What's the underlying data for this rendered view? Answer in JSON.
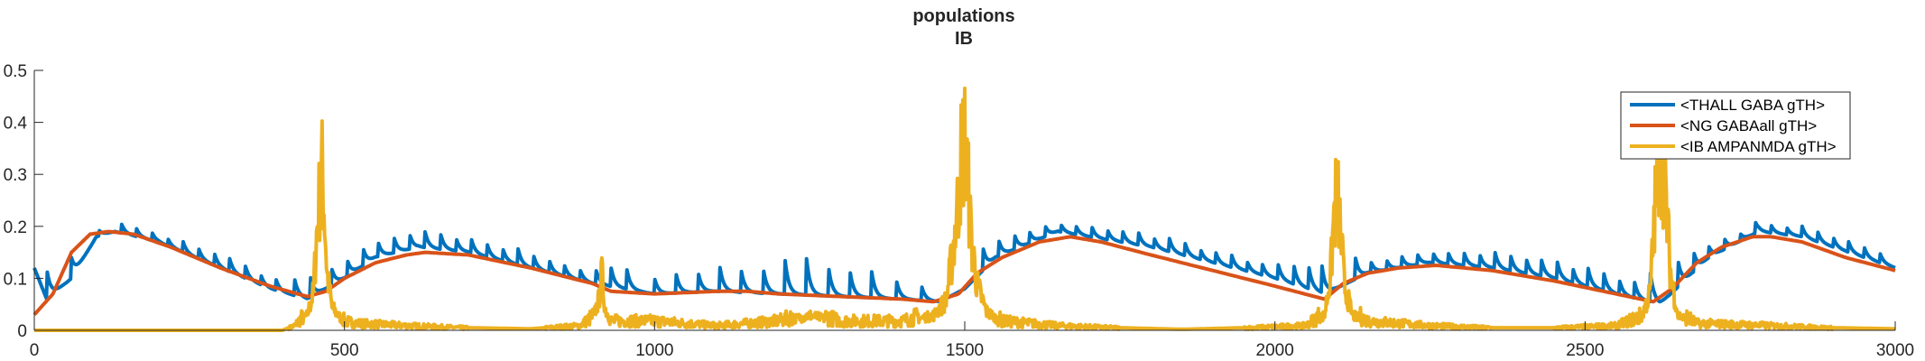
{
  "chart_data": {
    "type": "line",
    "title": "populations",
    "subtitle": "IB",
    "xlabel": "",
    "ylabel": "",
    "xlim": [
      0,
      3000
    ],
    "ylim": [
      0,
      0.5
    ],
    "x_ticks": [
      0,
      500,
      1000,
      1500,
      2000,
      2500,
      3000
    ],
    "y_ticks": [
      0,
      0.1,
      0.2,
      0.3,
      0.4,
      0.5
    ],
    "x_tick_labels": [
      "0",
      "500",
      "1000",
      "1500",
      "2000",
      "2500",
      "3000"
    ],
    "y_tick_labels": [
      "0",
      "0.1",
      "0.2",
      "0.3",
      "0.4",
      "0.5"
    ],
    "grid": false,
    "legend_position": "top-right",
    "series": [
      {
        "name": "<THALL GABA gTH>",
        "color": "#0072BD",
        "style": "smooth baseline with periodic sharp spikes",
        "points": [
          [
            0,
            0.12
          ],
          [
            20,
            0.06
          ],
          [
            60,
            0.1
          ],
          [
            100,
            0.18
          ],
          [
            130,
            0.19
          ],
          [
            200,
            0.17
          ],
          [
            300,
            0.12
          ],
          [
            380,
            0.08
          ],
          [
            440,
            0.06
          ],
          [
            500,
            0.1
          ],
          [
            550,
            0.14
          ],
          [
            620,
            0.16
          ],
          [
            700,
            0.15
          ],
          [
            800,
            0.12
          ],
          [
            900,
            0.09
          ],
          [
            950,
            0.08
          ],
          [
            1000,
            0.07
          ],
          [
            1100,
            0.075
          ],
          [
            1200,
            0.07
          ],
          [
            1300,
            0.065
          ],
          [
            1400,
            0.06
          ],
          [
            1460,
            0.055
          ],
          [
            1500,
            0.08
          ],
          [
            1550,
            0.14
          ],
          [
            1650,
            0.19
          ],
          [
            1700,
            0.18
          ],
          [
            1800,
            0.16
          ],
          [
            1900,
            0.13
          ],
          [
            2000,
            0.1
          ],
          [
            2080,
            0.07
          ],
          [
            2150,
            0.11
          ],
          [
            2250,
            0.13
          ],
          [
            2350,
            0.12
          ],
          [
            2450,
            0.1
          ],
          [
            2550,
            0.07
          ],
          [
            2620,
            0.05
          ],
          [
            2700,
            0.14
          ],
          [
            2780,
            0.19
          ],
          [
            2850,
            0.18
          ],
          [
            2950,
            0.14
          ],
          [
            3000,
            0.12
          ]
        ],
        "spike_x": [
          20,
          60,
          105,
          140,
          165,
          190,
          215,
          240,
          265,
          290,
          315,
          340,
          365,
          390,
          420,
          445,
          480,
          505,
          530,
          555,
          580,
          605,
          630,
          655,
          680,
          705,
          730,
          755,
          780,
          805,
          830,
          855,
          880,
          905,
          930,
          955,
          1000,
          1035,
          1070,
          1105,
          1140,
          1175,
          1210,
          1245,
          1280,
          1315,
          1350,
          1390,
          1430,
          1530,
          1555,
          1580,
          1605,
          1630,
          1655,
          1680,
          1705,
          1730,
          1755,
          1780,
          1805,
          1830,
          1855,
          1880,
          1905,
          1930,
          1955,
          1980,
          2005,
          2030,
          2055,
          2075,
          2130,
          2155,
          2180,
          2205,
          2230,
          2255,
          2280,
          2305,
          2330,
          2355,
          2380,
          2405,
          2430,
          2455,
          2480,
          2505,
          2530,
          2555,
          2580,
          2605,
          2650,
          2675,
          2700,
          2725,
          2750,
          2775,
          2800,
          2825,
          2850,
          2875,
          2900,
          2925,
          2950,
          2975
        ],
        "spike_height": [
          0.06,
          0.04,
          0.01,
          0.02,
          0.015,
          0.015,
          0.015,
          0.02,
          0.02,
          0.025,
          0.025,
          0.025,
          0.02,
          0.02,
          0.03,
          0.04,
          0.03,
          0.03,
          0.035,
          0.025,
          0.03,
          0.03,
          0.03,
          0.03,
          0.025,
          0.025,
          0.025,
          0.025,
          0.03,
          0.025,
          0.025,
          0.02,
          0.02,
          0.03,
          0.035,
          0.04,
          0.03,
          0.035,
          0.04,
          0.05,
          0.04,
          0.05,
          0.07,
          0.07,
          0.06,
          0.05,
          0.05,
          0.035,
          0.03,
          0.04,
          0.03,
          0.03,
          0.02,
          0.02,
          0.015,
          0.015,
          0.02,
          0.02,
          0.02,
          0.025,
          0.02,
          0.025,
          0.025,
          0.02,
          0.02,
          0.025,
          0.02,
          0.02,
          0.03,
          0.04,
          0.04,
          0.06,
          0.04,
          0.02,
          0.02,
          0.02,
          0.02,
          0.02,
          0.02,
          0.025,
          0.025,
          0.03,
          0.03,
          0.03,
          0.03,
          0.035,
          0.03,
          0.035,
          0.035,
          0.03,
          0.03,
          0.06,
          0.05,
          0.04,
          0.02,
          0.02,
          0.015,
          0.02,
          0.015,
          0.015,
          0.02,
          0.02,
          0.02,
          0.02,
          0.02,
          0.02
        ]
      },
      {
        "name": "<NG GABAall gTH>",
        "color": "#D95319",
        "style": "smooth curve",
        "points": [
          [
            0,
            0.03
          ],
          [
            15,
            0.05
          ],
          [
            30,
            0.07
          ],
          [
            60,
            0.15
          ],
          [
            90,
            0.185
          ],
          [
            120,
            0.19
          ],
          [
            160,
            0.185
          ],
          [
            220,
            0.16
          ],
          [
            300,
            0.12
          ],
          [
            380,
            0.085
          ],
          [
            440,
            0.065
          ],
          [
            470,
            0.075
          ],
          [
            500,
            0.1
          ],
          [
            550,
            0.13
          ],
          [
            600,
            0.145
          ],
          [
            630,
            0.15
          ],
          [
            700,
            0.145
          ],
          [
            800,
            0.12
          ],
          [
            900,
            0.09
          ],
          [
            930,
            0.075
          ],
          [
            1000,
            0.07
          ],
          [
            1100,
            0.075
          ],
          [
            1150,
            0.075
          ],
          [
            1200,
            0.07
          ],
          [
            1300,
            0.065
          ],
          [
            1400,
            0.06
          ],
          [
            1450,
            0.055
          ],
          [
            1490,
            0.07
          ],
          [
            1520,
            0.11
          ],
          [
            1560,
            0.14
          ],
          [
            1620,
            0.17
          ],
          [
            1670,
            0.18
          ],
          [
            1720,
            0.17
          ],
          [
            1800,
            0.145
          ],
          [
            1900,
            0.115
          ],
          [
            2000,
            0.085
          ],
          [
            2080,
            0.06
          ],
          [
            2110,
            0.09
          ],
          [
            2150,
            0.11
          ],
          [
            2200,
            0.12
          ],
          [
            2260,
            0.125
          ],
          [
            2350,
            0.115
          ],
          [
            2450,
            0.095
          ],
          [
            2550,
            0.07
          ],
          [
            2610,
            0.055
          ],
          [
            2640,
            0.08
          ],
          [
            2680,
            0.13
          ],
          [
            2720,
            0.16
          ],
          [
            2770,
            0.18
          ],
          [
            2800,
            0.18
          ],
          [
            2850,
            0.17
          ],
          [
            2920,
            0.14
          ],
          [
            3000,
            0.115
          ]
        ]
      },
      {
        "name": "<IB AMPANMDA gTH>",
        "color": "#EDB120",
        "style": "near-zero baseline with large bursts",
        "points": [
          [
            0,
            0.0
          ],
          [
            400,
            0.0
          ],
          [
            420,
            0.01
          ],
          [
            440,
            0.04
          ],
          [
            450,
            0.1
          ],
          [
            455,
            0.25
          ],
          [
            460,
            0.36
          ],
          [
            464,
            0.42
          ],
          [
            468,
            0.3
          ],
          [
            472,
            0.15
          ],
          [
            480,
            0.06
          ],
          [
            500,
            0.02
          ],
          [
            520,
            0.015
          ],
          [
            600,
            0.01
          ],
          [
            700,
            0.005
          ],
          [
            800,
            0.003
          ],
          [
            880,
            0.01
          ],
          [
            900,
            0.03
          ],
          [
            910,
            0.08
          ],
          [
            915,
            0.15
          ],
          [
            920,
            0.06
          ],
          [
            930,
            0.02
          ],
          [
            1000,
            0.02
          ],
          [
            1100,
            0.01
          ],
          [
            1200,
            0.02
          ],
          [
            1250,
            0.04
          ],
          [
            1300,
            0.02
          ],
          [
            1400,
            0.02
          ],
          [
            1450,
            0.04
          ],
          [
            1470,
            0.08
          ],
          [
            1480,
            0.2
          ],
          [
            1490,
            0.35
          ],
          [
            1495,
            0.48
          ],
          [
            1500,
            0.5
          ],
          [
            1505,
            0.4
          ],
          [
            1510,
            0.25
          ],
          [
            1520,
            0.12
          ],
          [
            1535,
            0.05
          ],
          [
            1560,
            0.02
          ],
          [
            1650,
            0.01
          ],
          [
            1750,
            0.005
          ],
          [
            1850,
            0.002
          ],
          [
            1950,
            0.005
          ],
          [
            2050,
            0.01
          ],
          [
            2080,
            0.04
          ],
          [
            2090,
            0.15
          ],
          [
            2095,
            0.3
          ],
          [
            2100,
            0.37
          ],
          [
            2105,
            0.28
          ],
          [
            2112,
            0.12
          ],
          [
            2125,
            0.04
          ],
          [
            2150,
            0.02
          ],
          [
            2250,
            0.01
          ],
          [
            2350,
            0.005
          ],
          [
            2450,
            0.005
          ],
          [
            2550,
            0.01
          ],
          [
            2590,
            0.03
          ],
          [
            2605,
            0.1
          ],
          [
            2612,
            0.3
          ],
          [
            2618,
            0.45
          ],
          [
            2624,
            0.48
          ],
          [
            2630,
            0.35
          ],
          [
            2638,
            0.15
          ],
          [
            2650,
            0.04
          ],
          [
            2680,
            0.015
          ],
          [
            2800,
            0.01
          ],
          [
            2900,
            0.005
          ],
          [
            3000,
            0.003
          ]
        ]
      }
    ]
  }
}
